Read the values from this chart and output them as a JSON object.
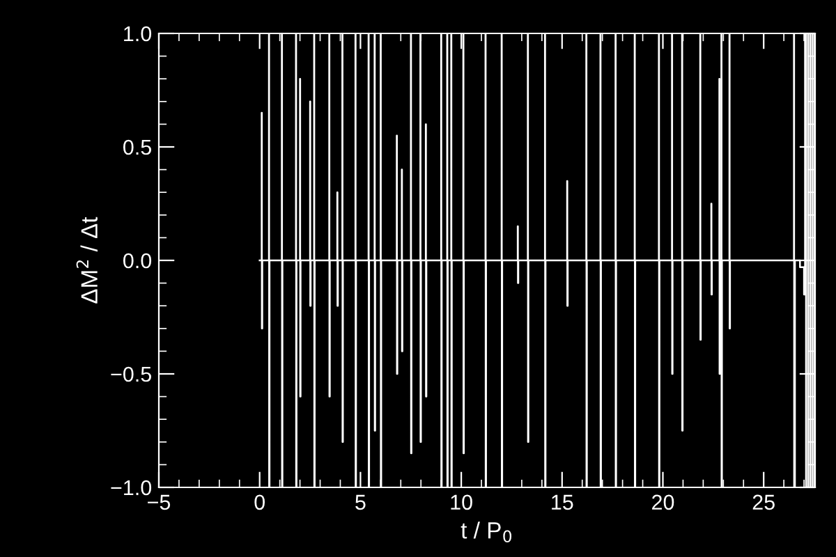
{
  "chart_data": {
    "type": "step",
    "xlabel": "t / P$_{0}$",
    "ylabel": "ΔM$^{2}$ / Δt",
    "xlim": [
      -5,
      27.55
    ],
    "ylim": [
      -1.0,
      1.0
    ],
    "xticks": [
      {
        "value": -5,
        "label": "−5"
      },
      0,
      5,
      10,
      15,
      20,
      25
    ],
    "yticks": [
      {
        "value": -1.0,
        "label": "−1.0"
      },
      {
        "value": -0.5,
        "label": "−0.5"
      },
      {
        "value": 0.0,
        "label": "0.0"
      },
      {
        "value": 0.5,
        "label": "0.5"
      },
      {
        "value": 1.0,
        "label": "1.0"
      }
    ],
    "grid": false,
    "marker": "none",
    "line_style": "solid",
    "series": [
      {
        "color": "#ffffff",
        "x": [
          0.0,
          0.1,
          0.11,
          0.13,
          0.46,
          0.47,
          0.49,
          1.1,
          1.11,
          1.13,
          1.8,
          1.81,
          1.83,
          2.0,
          2.01,
          2.03,
          2.5,
          2.51,
          2.53,
          2.7,
          2.71,
          2.73,
          3.45,
          3.46,
          3.48,
          3.85,
          3.86,
          3.88,
          4.1,
          4.11,
          4.13,
          4.75,
          4.76,
          4.78,
          5.4,
          5.41,
          5.43,
          5.7,
          5.71,
          5.73,
          6.0,
          6.01,
          6.03,
          6.8,
          6.81,
          6.83,
          7.05,
          7.06,
          7.08,
          7.5,
          7.51,
          7.53,
          7.97,
          7.98,
          8.0,
          8.24,
          8.25,
          8.27,
          9.0,
          9.01,
          9.03,
          9.3,
          9.31,
          9.33,
          9.5,
          9.51,
          9.53,
          10.1,
          10.11,
          10.13,
          11.2,
          11.21,
          11.23,
          12.0,
          12.01,
          12.03,
          12.8,
          12.81,
          12.83,
          13.3,
          13.31,
          13.33,
          14.15,
          14.16,
          14.18,
          15.25,
          15.26,
          15.28,
          16.2,
          16.21,
          16.23,
          16.9,
          16.91,
          16.93,
          17.65,
          17.66,
          17.68,
          18.6,
          18.61,
          18.63,
          19.8,
          19.81,
          19.83,
          20.45,
          20.46,
          20.48,
          20.95,
          20.96,
          20.98,
          21.85,
          21.86,
          21.88,
          22.4,
          22.41,
          22.43,
          22.8,
          22.81,
          22.83,
          22.9,
          22.91,
          22.93,
          23.3,
          23.31,
          23.33,
          26.5,
          26.51,
          26.55,
          26.8,
          27.0,
          27.05,
          27.1,
          27.2,
          27.3,
          27.4,
          27.5
        ],
        "values": [
          0.0,
          0.65,
          -0.3,
          0.0,
          1.0,
          -1.0,
          0.0,
          1.0,
          -1.0,
          0.0,
          1.0,
          -1.0,
          0.0,
          0.8,
          -0.6,
          0.0,
          0.7,
          -0.2,
          0.0,
          1.0,
          -1.0,
          0.0,
          1.0,
          -0.6,
          0.0,
          0.3,
          -0.2,
          0.0,
          1.0,
          -0.8,
          0.0,
          1.0,
          -1.0,
          0.0,
          1.0,
          -1.0,
          0.0,
          1.0,
          -0.75,
          0.0,
          1.0,
          -1.0,
          0.0,
          0.55,
          -0.5,
          0.0,
          0.4,
          -0.4,
          0.0,
          1.0,
          -0.85,
          0.0,
          1.0,
          -0.8,
          0.0,
          0.6,
          -0.6,
          0.0,
          1.0,
          -1.0,
          0.0,
          1.0,
          -1.0,
          0.0,
          1.0,
          -1.0,
          0.0,
          1.0,
          -0.85,
          0.0,
          1.0,
          -1.0,
          0.0,
          1.0,
          -1.0,
          0.0,
          0.15,
          -0.1,
          0.0,
          1.0,
          -0.8,
          0.0,
          1.0,
          -1.0,
          0.0,
          0.35,
          -0.2,
          0.0,
          1.0,
          -1.0,
          0.0,
          1.0,
          -1.0,
          0.0,
          1.0,
          -1.0,
          0.0,
          1.0,
          -1.0,
          0.0,
          1.0,
          -1.0,
          0.0,
          1.0,
          -0.5,
          0.0,
          1.0,
          -0.75,
          0.0,
          1.0,
          -0.35,
          0.0,
          0.25,
          -0.15,
          0.0,
          0.8,
          -0.5,
          0.0,
          1.0,
          -1.0,
          0.0,
          1.0,
          -0.3,
          0.0,
          1.0,
          -1.0,
          0.0,
          -0.03,
          -0.15,
          1.0,
          -1.0,
          1.0,
          -1.0,
          1.0,
          -1.0
        ]
      }
    ]
  }
}
